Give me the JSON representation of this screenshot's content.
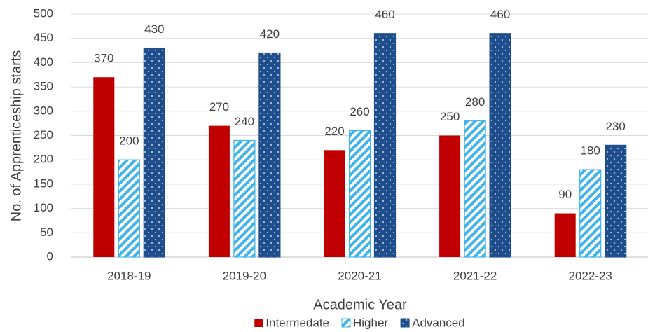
{
  "chart_data": {
    "type": "bar",
    "x_label": "Academic Year",
    "y_label": "No. of Apprenticeship starts",
    "categories": [
      "2018-19",
      "2019-20",
      "2020-21",
      "2021-22",
      "2022-23"
    ],
    "series": [
      {
        "name": "Intermedate",
        "color": "#c00000",
        "pattern": "solid",
        "values": [
          370,
          270,
          220,
          250,
          90
        ]
      },
      {
        "name": "Higher",
        "color": "#3fb3ea",
        "pattern": "stripes",
        "values": [
          200,
          240,
          260,
          280,
          180
        ]
      },
      {
        "name": "Advanced",
        "color": "#1f4e8c",
        "pattern": "dots",
        "values": [
          430,
          420,
          460,
          460,
          230
        ]
      }
    ],
    "ylim": [
      0,
      500
    ],
    "yticks": [
      0,
      50,
      100,
      150,
      200,
      250,
      300,
      350,
      400,
      450,
      500
    ],
    "grid": true,
    "legend": "bottom"
  }
}
